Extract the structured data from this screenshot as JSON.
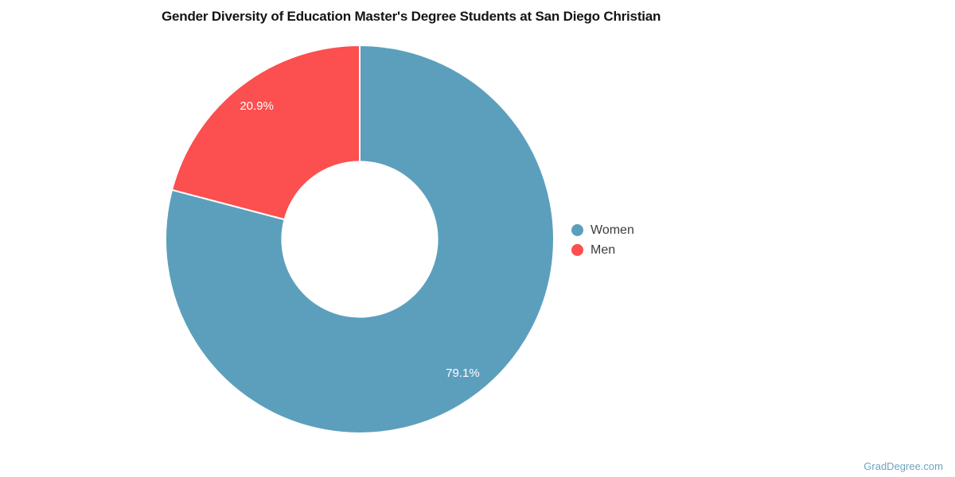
{
  "page": {
    "watermark": "GradDegree.com"
  },
  "chart_data": {
    "type": "pie",
    "subtype": "donut",
    "title": "Gender Diversity of Education Master's Degree Students at San Diego Christian",
    "categories": [
      "Women",
      "Men"
    ],
    "values": [
      79.1,
      20.9
    ],
    "data_labels": [
      "79.1%",
      "20.9%"
    ],
    "colors": [
      "#5C9FBD",
      "#FC4F4F"
    ],
    "data_label_color": "#ffffff",
    "legend_position": "right",
    "start_angle_deg": 0,
    "direction": "clockwise",
    "inner_radius_ratio": 0.4
  },
  "legend": {
    "items": [
      {
        "label": "Women",
        "color": "#5C9FBD"
      },
      {
        "label": "Men",
        "color": "#FC4F4F"
      }
    ]
  }
}
